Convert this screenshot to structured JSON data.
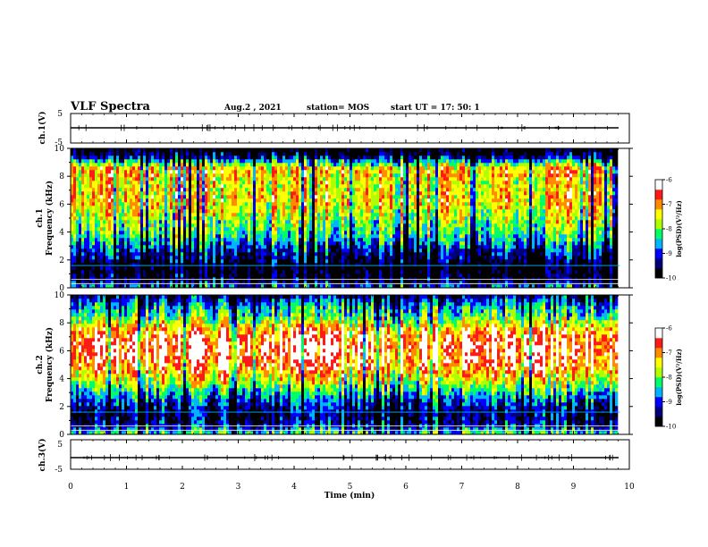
{
  "header": {
    "title": "VLF Spectra",
    "date": "Aug.2 , 2021",
    "station": "station= MOS",
    "start": "start UT = 17: 50: 1"
  },
  "colors": {
    "palette": [
      "#000000",
      "#00007a",
      "#0000ff",
      "#00b4ff",
      "#00ff66",
      "#b0ff00",
      "#ffff00",
      "#ff8c00",
      "#ff1a1a",
      "#ffffff"
    ]
  },
  "chart_data": [
    {
      "type": "line",
      "panel": "ch1-waveform",
      "ylabel": "ch.1(V)",
      "ylim": [
        -5,
        5
      ],
      "yticks": [
        "5",
        "-5"
      ],
      "x": [
        0,
        10
      ],
      "values": [
        0,
        0
      ]
    },
    {
      "type": "heatmap",
      "panel": "ch1-spectrogram",
      "ylabel": "ch.1 Frequency (kHz)",
      "ylim": [
        0,
        10
      ],
      "yticks": [
        "0",
        "2",
        "4",
        "6",
        "8",
        "10"
      ],
      "xlim": [
        0,
        9.83
      ],
      "colorbar": {
        "label": "log(PSD)(V²/Hz)",
        "range": [
          -10,
          -6
        ],
        "ticks": [
          "-6",
          "-7",
          "-8",
          "-9",
          "-10"
        ]
      },
      "freq_profile_khz": [
        0,
        0.5,
        1,
        1.5,
        2,
        2.5,
        3,
        3.5,
        4,
        4.5,
        5,
        5.5,
        6,
        6.5,
        7,
        7.5,
        8,
        8.5,
        9,
        9.5,
        10
      ],
      "level_profile": [
        -8.5,
        -9.6,
        -9.8,
        -9.9,
        -9.5,
        -9.2,
        -8.8,
        -8.4,
        -8.1,
        -7.9,
        -7.7,
        -7.5,
        -7.3,
        -7.2,
        -7.3,
        -7.4,
        -7.2,
        -7.0,
        -8.2,
        -9.6,
        -10.0
      ]
    },
    {
      "type": "heatmap",
      "panel": "ch2-spectrogram",
      "ylabel": "ch.2 Frequency (kHz)",
      "ylim": [
        0,
        10
      ],
      "yticks": [
        "0",
        "2",
        "4",
        "6",
        "8",
        "10"
      ],
      "xlim": [
        0,
        9.83
      ],
      "colorbar": {
        "label": "log(PSD)(V²/Hz)",
        "range": [
          -10,
          -6
        ],
        "ticks": [
          "-6",
          "-7",
          "-8",
          "-9",
          "-10"
        ]
      },
      "freq_profile_khz": [
        0,
        0.5,
        1,
        1.5,
        2,
        2.5,
        3,
        3.5,
        4,
        4.5,
        5,
        5.5,
        6,
        6.5,
        7,
        7.5,
        8,
        8.5,
        9,
        9.5,
        10
      ],
      "level_profile": [
        -8.0,
        -9.0,
        -9.4,
        -9.5,
        -9.2,
        -8.8,
        -8.4,
        -7.9,
        -7.4,
        -7.0,
        -6.7,
        -6.5,
        -6.4,
        -6.4,
        -6.6,
        -6.9,
        -7.6,
        -8.1,
        -8.4,
        -8.8,
        -9.5
      ]
    },
    {
      "type": "line",
      "panel": "ch3-waveform",
      "ylabel": "ch.3(V)",
      "ylim": [
        -5,
        5
      ],
      "yticks": [
        "5",
        "-5"
      ],
      "x": [
        0,
        10
      ],
      "values": [
        0,
        0
      ]
    }
  ],
  "xaxis": {
    "label": "Time (min)",
    "ticks": [
      "0",
      "1",
      "2",
      "3",
      "4",
      "5",
      "6",
      "7",
      "8",
      "9",
      "10"
    ],
    "range": [
      0,
      10
    ]
  }
}
